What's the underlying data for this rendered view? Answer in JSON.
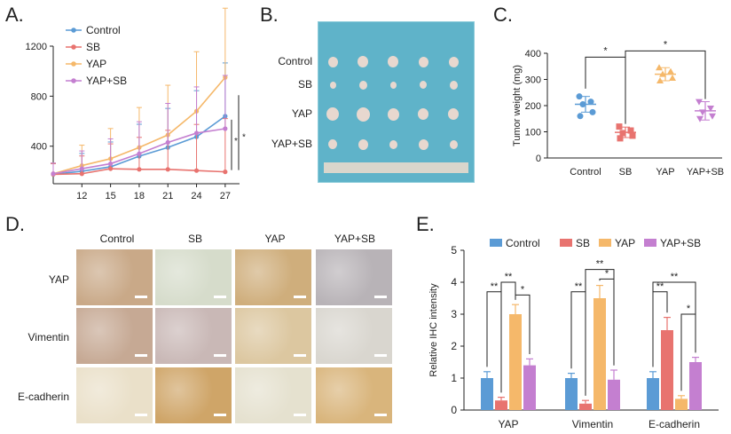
{
  "panels": {
    "A": "A.",
    "B": "B.",
    "C": "C.",
    "D": "D.",
    "E": "E."
  },
  "colors": {
    "control": "#5b9bd5",
    "sb": "#e8736f",
    "yap": "#f5b86a",
    "yapsb": "#c47fd0"
  },
  "photo": {
    "rows": [
      "Control",
      "SB",
      "YAP",
      "YAP+SB"
    ]
  },
  "ihc": {
    "columns": [
      "Control",
      "SB",
      "YAP",
      "YAP+SB"
    ],
    "rows": [
      "YAP",
      "Vimentin",
      "E-cadherin"
    ]
  },
  "chart_data": [
    {
      "type": "line",
      "panel": "A",
      "x": [
        9,
        12,
        15,
        18,
        21,
        24,
        27
      ],
      "xticks": [
        "12",
        "15",
        "18",
        "21",
        "24",
        "27"
      ],
      "yticks": [
        "400",
        "800",
        "1200"
      ],
      "ylim": [
        100,
        1200
      ],
      "series": [
        {
          "name": "Control",
          "values": [
            175,
            200,
            235,
            320,
            390,
            475,
            640
          ]
        },
        {
          "name": "SB",
          "values": [
            175,
            180,
            220,
            215,
            215,
            205,
            195
          ]
        },
        {
          "name": "YAP",
          "values": [
            180,
            245,
            300,
            390,
            490,
            680,
            950
          ]
        },
        {
          "name": "YAP+SB",
          "values": [
            180,
            220,
            260,
            340,
            430,
            505,
            540
          ]
        }
      ],
      "annotations": [
        "*",
        "*"
      ]
    },
    {
      "type": "scatter",
      "panel": "C",
      "ylabel": "Tumor weight (mg)",
      "categories": [
        "Control",
        "SB",
        "YAP",
        "YAP+SB"
      ],
      "yticks": [
        "0",
        "100",
        "200",
        "300",
        "400"
      ],
      "ylim": [
        0,
        400
      ],
      "means": [
        205,
        98,
        320,
        180
      ],
      "sd": [
        30,
        20,
        25,
        35
      ],
      "points": [
        [
          235,
          215,
          205,
          175,
          160
        ],
        [
          120,
          105,
          95,
          85,
          75
        ],
        [
          345,
          330,
          320,
          305,
          295
        ],
        [
          215,
          190,
          175,
          160,
          150
        ]
      ],
      "annotations": [
        "*",
        "*"
      ]
    },
    {
      "type": "bar",
      "panel": "E",
      "ylabel": "Relative IHC intensity",
      "categories": [
        "YAP",
        "Vimentin",
        "E-cadherin"
      ],
      "yticks": [
        "0",
        "1",
        "2",
        "3",
        "4",
        "5"
      ],
      "ylim": [
        0,
        5
      ],
      "series": [
        {
          "name": "Control",
          "values": [
            1.0,
            1.0,
            1.0
          ],
          "err": [
            0.2,
            0.15,
            0.2
          ]
        },
        {
          "name": "SB",
          "values": [
            0.3,
            0.2,
            2.5
          ],
          "err": [
            0.1,
            0.1,
            0.4
          ]
        },
        {
          "name": "YAP",
          "values": [
            3.0,
            3.5,
            0.35
          ],
          "err": [
            0.3,
            0.4,
            0.1
          ]
        },
        {
          "name": "YAP+SB",
          "values": [
            1.4,
            0.95,
            1.5
          ],
          "err": [
            0.2,
            0.3,
            0.15
          ]
        }
      ],
      "annotations": [
        "**",
        "**",
        "*",
        "**",
        "**",
        "*",
        "**",
        "**",
        "*"
      ]
    }
  ]
}
